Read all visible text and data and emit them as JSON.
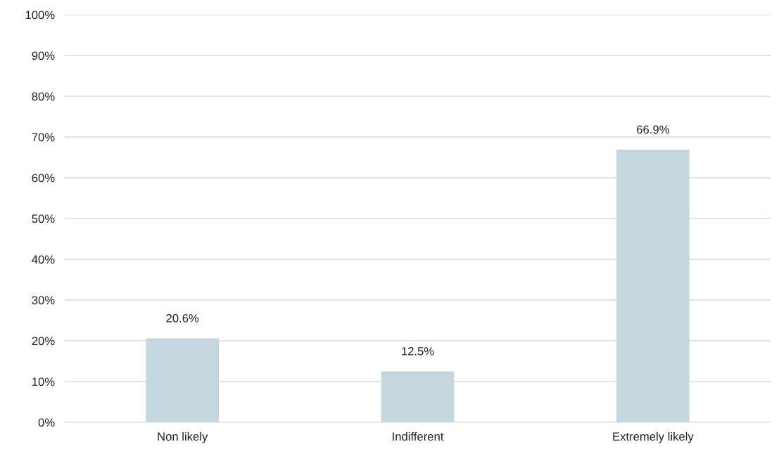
{
  "chart_data": {
    "type": "bar",
    "categories": [
      "Non likely",
      "Indifferent",
      "Extremely likely"
    ],
    "values": [
      20.6,
      12.5,
      66.9
    ],
    "value_labels": [
      "20.6%",
      "12.5%",
      "66.9%"
    ],
    "color": "#c5d6df",
    "ylim": [
      0,
      100
    ],
    "yticks": [
      {
        "value": 0,
        "label": "0%"
      },
      {
        "value": 10,
        "label": "10%"
      },
      {
        "value": 20,
        "label": "20%"
      },
      {
        "value": 30,
        "label": "30%"
      },
      {
        "value": 40,
        "label": "40%"
      },
      {
        "value": 50,
        "label": "50%"
      },
      {
        "value": 60,
        "label": "60%"
      },
      {
        "value": 70,
        "label": "70%"
      },
      {
        "value": 80,
        "label": "80%"
      },
      {
        "value": 90,
        "label": "90%"
      },
      {
        "value": 100,
        "label": "100%"
      }
    ],
    "grid": "y",
    "legend": false
  }
}
